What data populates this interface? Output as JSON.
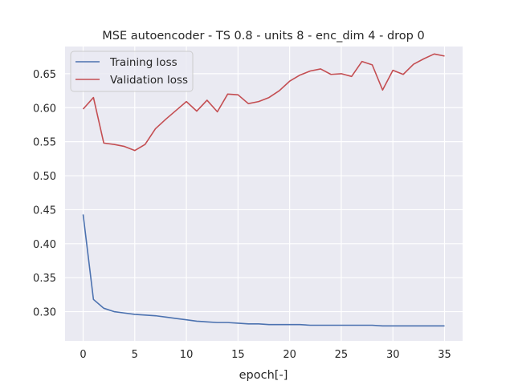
{
  "chart_data": {
    "type": "line",
    "title": "MSE autoencoder - TS 0.8 - units 8 - enc_dim 4 - drop 0",
    "xlabel": "epoch[-]",
    "ylabel": "",
    "xlim": [
      -1.75,
      36.75
    ],
    "ylim": [
      0.257,
      0.69
    ],
    "xticks": [
      0,
      5,
      10,
      15,
      20,
      25,
      30,
      35
    ],
    "xtick_labels": [
      "0",
      "5",
      "10",
      "15",
      "20",
      "25",
      "30",
      "35"
    ],
    "yticks": [
      0.3,
      0.35,
      0.4,
      0.45,
      0.5,
      0.55,
      0.6,
      0.65
    ],
    "ytick_labels": [
      "0.30",
      "0.35",
      "0.40",
      "0.45",
      "0.50",
      "0.55",
      "0.60",
      "0.65"
    ],
    "grid": true,
    "legend_position": "top-left",
    "x": [
      0,
      1,
      2,
      3,
      4,
      5,
      6,
      7,
      8,
      9,
      10,
      11,
      12,
      13,
      14,
      15,
      16,
      17,
      18,
      19,
      20,
      21,
      22,
      23,
      24,
      25,
      26,
      27,
      28,
      29,
      30,
      31,
      32,
      33,
      34,
      35
    ],
    "series": [
      {
        "name": "Training loss",
        "color": "#4c72b0",
        "values": [
          0.443,
          0.318,
          0.305,
          0.3,
          0.298,
          0.296,
          0.295,
          0.294,
          0.292,
          0.29,
          0.288,
          0.286,
          0.285,
          0.284,
          0.284,
          0.283,
          0.282,
          0.282,
          0.281,
          0.281,
          0.281,
          0.281,
          0.28,
          0.28,
          0.28,
          0.28,
          0.28,
          0.28,
          0.28,
          0.279,
          0.279,
          0.279,
          0.279,
          0.279,
          0.279,
          0.279
        ]
      },
      {
        "name": "Validation loss",
        "color": "#c44e52",
        "values": [
          0.598,
          0.615,
          0.548,
          0.546,
          0.543,
          0.537,
          0.546,
          0.569,
          0.583,
          0.596,
          0.609,
          0.595,
          0.611,
          0.594,
          0.62,
          0.619,
          0.606,
          0.609,
          0.615,
          0.625,
          0.639,
          0.648,
          0.654,
          0.657,
          0.649,
          0.65,
          0.646,
          0.668,
          0.663,
          0.626,
          0.655,
          0.649,
          0.664,
          0.672,
          0.679,
          0.676
        ]
      }
    ]
  }
}
